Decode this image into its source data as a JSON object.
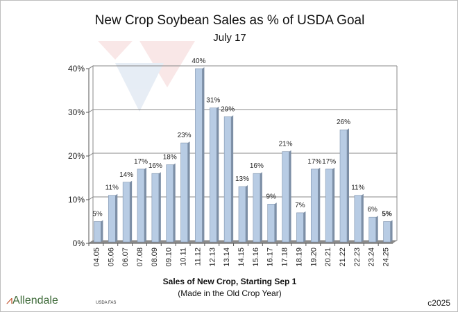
{
  "chart_data": {
    "type": "bar",
    "title": "New Crop Soybean Sales as % of USDA Goal",
    "subtitle": "July 17",
    "xlabel": "Sales of New Crop, Starting Sep 1",
    "xlabel_sub": "(Made in the Old Crop Year)",
    "ylabel": "",
    "ylim": [
      0,
      40
    ],
    "yticks": [
      "0%",
      "10%",
      "20%",
      "30%",
      "40%"
    ],
    "grid": true,
    "categories": [
      "04.05",
      "05.06",
      "06.07",
      "07.08",
      "08.09",
      "09.10",
      "10.11",
      "11.12",
      "12.13",
      "13.14",
      "14.15",
      "15.16",
      "16.17",
      "17.18",
      "18.19",
      "19.20",
      "20.21",
      "21.22",
      "22.23",
      "23.24",
      "24.25"
    ],
    "values": [
      5,
      11,
      14,
      17,
      16,
      18,
      23,
      40,
      31,
      29,
      13,
      16,
      9,
      21,
      7,
      17,
      17,
      26,
      11,
      6,
      5
    ],
    "data_labels": [
      "5%",
      "11%",
      "14%",
      "17%",
      "16%",
      "18%",
      "23%",
      "40%",
      "31%",
      "29%",
      "13%",
      "16%",
      "9%",
      "21%",
      "7%",
      "17%",
      "17%",
      "26%",
      "11%",
      "6%",
      "5%"
    ],
    "bar_color": "#b8cce4"
  },
  "footer": {
    "source": "USDA FAS",
    "copyright": "c2025",
    "logo": "Allendale"
  }
}
